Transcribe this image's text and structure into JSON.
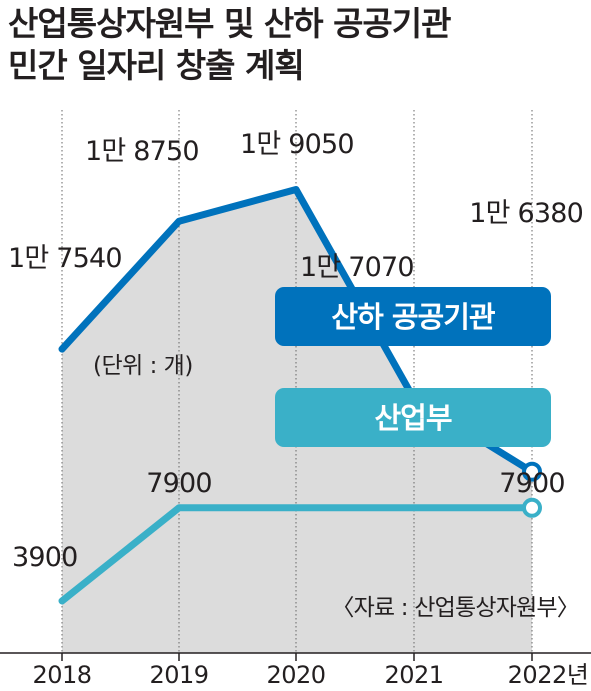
{
  "title_line1": "산업통상자원부 및 산하 공공기관",
  "title_line2": "민간 일자리 창출 계획",
  "unit_note": "(단위 : 개)",
  "source_note": "〈자료 : 산업통상자원부〉",
  "colors": {
    "public": "#0072bc",
    "ministry": "#3ab0c8",
    "fill": "#dcdcdc",
    "text": "#231f20"
  },
  "chart_data": {
    "type": "line",
    "x": [
      "2018",
      "2019",
      "2020",
      "2021",
      "2022년"
    ],
    "series": [
      {
        "name": "산하 공공기관",
        "values": [
          17540,
          18750,
          19050,
          17070,
          16380
        ],
        "labels": [
          "1만 7540",
          "1만 8750",
          "1만 9050",
          "1만 7070",
          "1만 6380"
        ]
      },
      {
        "name": "산업부",
        "values": [
          3900,
          7900,
          7900,
          null,
          7900
        ],
        "labels": [
          "3900",
          "7900",
          "",
          "",
          "7900"
        ]
      }
    ],
    "legend": [
      "산하 공공기관",
      "산업부"
    ],
    "grid": true
  }
}
